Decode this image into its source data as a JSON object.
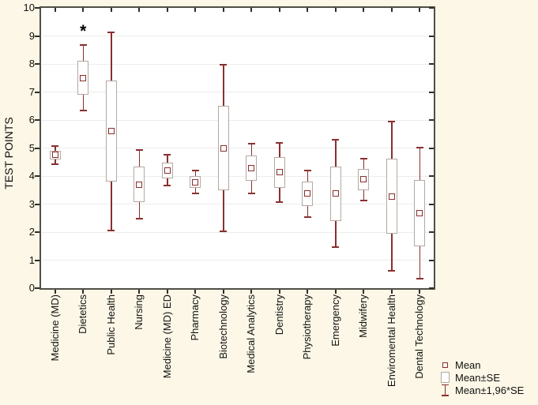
{
  "chart_data": {
    "type": "box",
    "subtype": "mean-se-whisker",
    "title": "",
    "xlabel": "",
    "ylabel": "TEST POINTS",
    "ylim": [
      0,
      10
    ],
    "yticks": [
      0,
      1,
      2,
      3,
      4,
      5,
      6,
      7,
      8,
      9,
      10
    ],
    "grid": "horizontal-light",
    "legend_position": "bottom-right",
    "legend": [
      {
        "marker": "mean-square-icon",
        "label": "Mean"
      },
      {
        "marker": "se-box-icon",
        "label": "Mean±SE"
      },
      {
        "marker": "ci-whisker-icon",
        "label": "Mean±1,96*SE"
      }
    ],
    "categories": [
      "Medicine (MD)",
      "Dietetics",
      "Public Health",
      "Nursing",
      "Medicine (MD) ED",
      "Pharmacy",
      "Biotechnology",
      "Medical Analytics",
      "Dentistry",
      "Physiotherapy",
      "Emergency",
      "Midwifery",
      "Enviromental Health",
      "Dental Technology"
    ],
    "series": [
      {
        "category": "Medicine (MD)",
        "mean": 4.75,
        "se_low": 4.59,
        "se_high": 4.91,
        "ci_low": 4.43,
        "ci_high": 5.07,
        "annotation": ""
      },
      {
        "category": "Dietetics",
        "mean": 7.5,
        "se_low": 6.9,
        "se_high": 8.1,
        "ci_low": 6.33,
        "ci_high": 8.67,
        "annotation": "*"
      },
      {
        "category": "Public Health",
        "mean": 5.6,
        "se_low": 3.79,
        "se_high": 7.41,
        "ci_low": 2.06,
        "ci_high": 9.14,
        "annotation": ""
      },
      {
        "category": "Nursing",
        "mean": 3.7,
        "se_low": 3.07,
        "se_high": 4.33,
        "ci_low": 2.47,
        "ci_high": 4.93,
        "annotation": ""
      },
      {
        "category": "Medicine (MD) ED",
        "mean": 4.2,
        "se_low": 3.92,
        "se_high": 4.48,
        "ci_low": 3.65,
        "ci_high": 4.75,
        "annotation": ""
      },
      {
        "category": "Pharmacy",
        "mean": 3.78,
        "se_low": 3.57,
        "se_high": 3.99,
        "ci_low": 3.37,
        "ci_high": 4.19,
        "annotation": ""
      },
      {
        "category": "Biotechnology",
        "mean": 5.0,
        "se_low": 3.49,
        "se_high": 6.51,
        "ci_low": 2.04,
        "ci_high": 7.96,
        "annotation": ""
      },
      {
        "category": "Medical Analytics",
        "mean": 4.27,
        "se_low": 3.82,
        "se_high": 4.72,
        "ci_low": 3.39,
        "ci_high": 5.15,
        "annotation": ""
      },
      {
        "category": "Dentistry",
        "mean": 4.13,
        "se_low": 3.59,
        "se_high": 4.67,
        "ci_low": 3.07,
        "ci_high": 5.19,
        "annotation": ""
      },
      {
        "category": "Physiotherapy",
        "mean": 3.37,
        "se_low": 2.94,
        "se_high": 3.8,
        "ci_low": 2.53,
        "ci_high": 4.21,
        "annotation": ""
      },
      {
        "category": "Emergency",
        "mean": 3.38,
        "se_low": 2.38,
        "se_high": 4.35,
        "ci_low": 1.46,
        "ci_high": 5.3,
        "annotation": ""
      },
      {
        "category": "Midwifery",
        "mean": 3.88,
        "se_low": 3.49,
        "se_high": 4.26,
        "ci_low": 3.13,
        "ci_high": 4.61,
        "annotation": ""
      },
      {
        "category": "Enviromental Health",
        "mean": 3.28,
        "se_low": 1.93,
        "se_high": 4.63,
        "ci_low": 0.63,
        "ci_high": 5.93,
        "annotation": ""
      },
      {
        "category": "Dental Technology",
        "mean": 2.68,
        "se_low": 1.49,
        "se_high": 3.87,
        "ci_low": 0.35,
        "ci_high": 5.01,
        "annotation": ""
      }
    ],
    "colors": {
      "background": "#fcf7e6",
      "plot_background": "#ffffff",
      "frame": "#4f4e47",
      "tick": "#2e2d28",
      "gridline": "#ececec",
      "whisker": "#8a2f2f",
      "box_border": "#b3a9a1",
      "box_fill": "#ffffff",
      "mean_marker": "#8a2f2f",
      "text": "#111111",
      "annotation": "#000000"
    }
  }
}
